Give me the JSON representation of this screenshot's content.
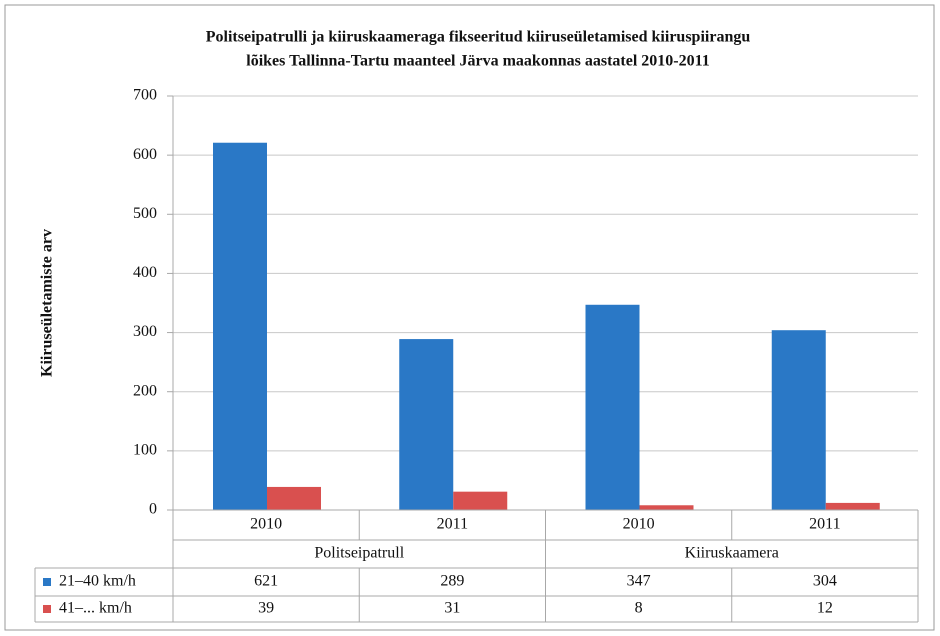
{
  "chart_data": {
    "type": "bar",
    "title": [
      "Politseipatrulli ja kiiruskaameraga fikseeritud kiiruseületamised kiiruspiirangu",
      "lõikes Tallinna-Tartu maanteel Järva maakonnas aastatel 2010-2011"
    ],
    "ylabel": "Kiiruseületamiste arv",
    "groups": [
      {
        "name": "Politseipatrull",
        "categories": [
          "2010",
          "2011"
        ]
      },
      {
        "name": "Kiiruskaamera",
        "categories": [
          "2010",
          "2011"
        ]
      }
    ],
    "series": [
      {
        "name": "21–40 km/h",
        "color": "#2a78c6",
        "values": [
          621,
          289,
          347,
          304
        ]
      },
      {
        "name": "41–... km/h",
        "color": "#d9504f",
        "values": [
          39,
          31,
          8,
          12
        ]
      }
    ],
    "ylim": [
      0,
      700
    ],
    "yticks": [
      0,
      100,
      200,
      300,
      400,
      500,
      600,
      700
    ],
    "grid": true
  }
}
